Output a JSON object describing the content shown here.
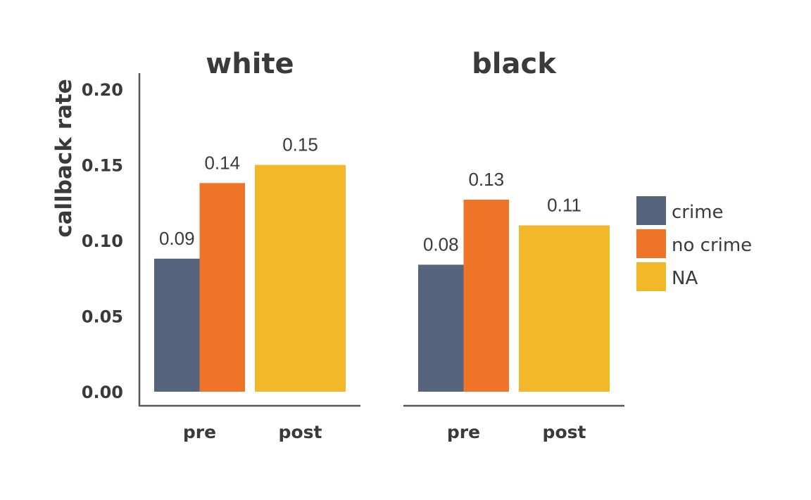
{
  "chart_data": {
    "type": "bar",
    "ylabel": "callback rate",
    "xlabel": "",
    "ylim": [
      0,
      0.21
    ],
    "yticks": [
      "0.00",
      "0.05",
      "0.10",
      "0.15",
      "0.20"
    ],
    "ytick_values": [
      0,
      0.05,
      0.1,
      0.15,
      0.2
    ],
    "grid": false,
    "legend_position": "right",
    "categories": [
      "pre",
      "post"
    ],
    "series": [
      {
        "name": "crime",
        "color": "#56657d"
      },
      {
        "name": "no crime",
        "color": "#f07427"
      },
      {
        "name": "NA",
        "color": "#f2b82a"
      }
    ],
    "panels": [
      {
        "title": "white",
        "bars": [
          {
            "category": "pre",
            "series": "crime",
            "value": 0.088,
            "label": "0.09"
          },
          {
            "category": "pre",
            "series": "no crime",
            "value": 0.138,
            "label": "0.14"
          },
          {
            "category": "post",
            "series": "NA",
            "value": 0.15,
            "label": "0.15"
          }
        ]
      },
      {
        "title": "black",
        "bars": [
          {
            "category": "pre",
            "series": "crime",
            "value": 0.084,
            "label": "0.08"
          },
          {
            "category": "pre",
            "series": "no crime",
            "value": 0.127,
            "label": "0.13"
          },
          {
            "category": "post",
            "series": "NA",
            "value": 0.11,
            "label": "0.11"
          }
        ]
      }
    ]
  }
}
